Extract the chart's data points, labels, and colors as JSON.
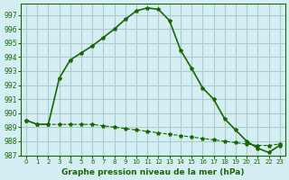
{
  "title": "Graphe pression niveau de la mer (hPa)",
  "background_color": "#d4eef4",
  "grid_color": "#aacccc",
  "line_color": "#1a6600",
  "x_labels": [
    "0",
    "1",
    "2",
    "3",
    "4",
    "5",
    "6",
    "7",
    "8",
    "9",
    "10",
    "11",
    "12",
    "13",
    "14",
    "15",
    "16",
    "17",
    "18",
    "19",
    "20",
    "21",
    "22",
    "23"
  ],
  "ylim": [
    987,
    997.8
  ],
  "yticks": [
    987,
    988,
    989,
    990,
    991,
    992,
    993,
    994,
    995,
    996,
    997
  ],
  "series1": [
    989.5,
    989.2,
    989.2,
    989.2,
    989.2,
    989.2,
    989.2,
    989.1,
    989.0,
    988.9,
    988.8,
    988.7,
    988.6,
    988.5,
    988.4,
    988.3,
    988.2,
    988.1,
    988.0,
    987.9,
    987.8,
    987.7,
    987.7,
    987.8
  ],
  "series2": [
    989.5,
    989.2,
    989.2,
    992.5,
    993.8,
    994.3,
    994.8,
    995.4,
    996.0,
    996.7,
    997.3,
    997.5,
    997.4,
    996.6,
    994.5,
    993.2,
    991.8,
    991.0,
    989.6,
    988.8,
    988.0,
    987.5,
    987.2,
    987.7
  ]
}
